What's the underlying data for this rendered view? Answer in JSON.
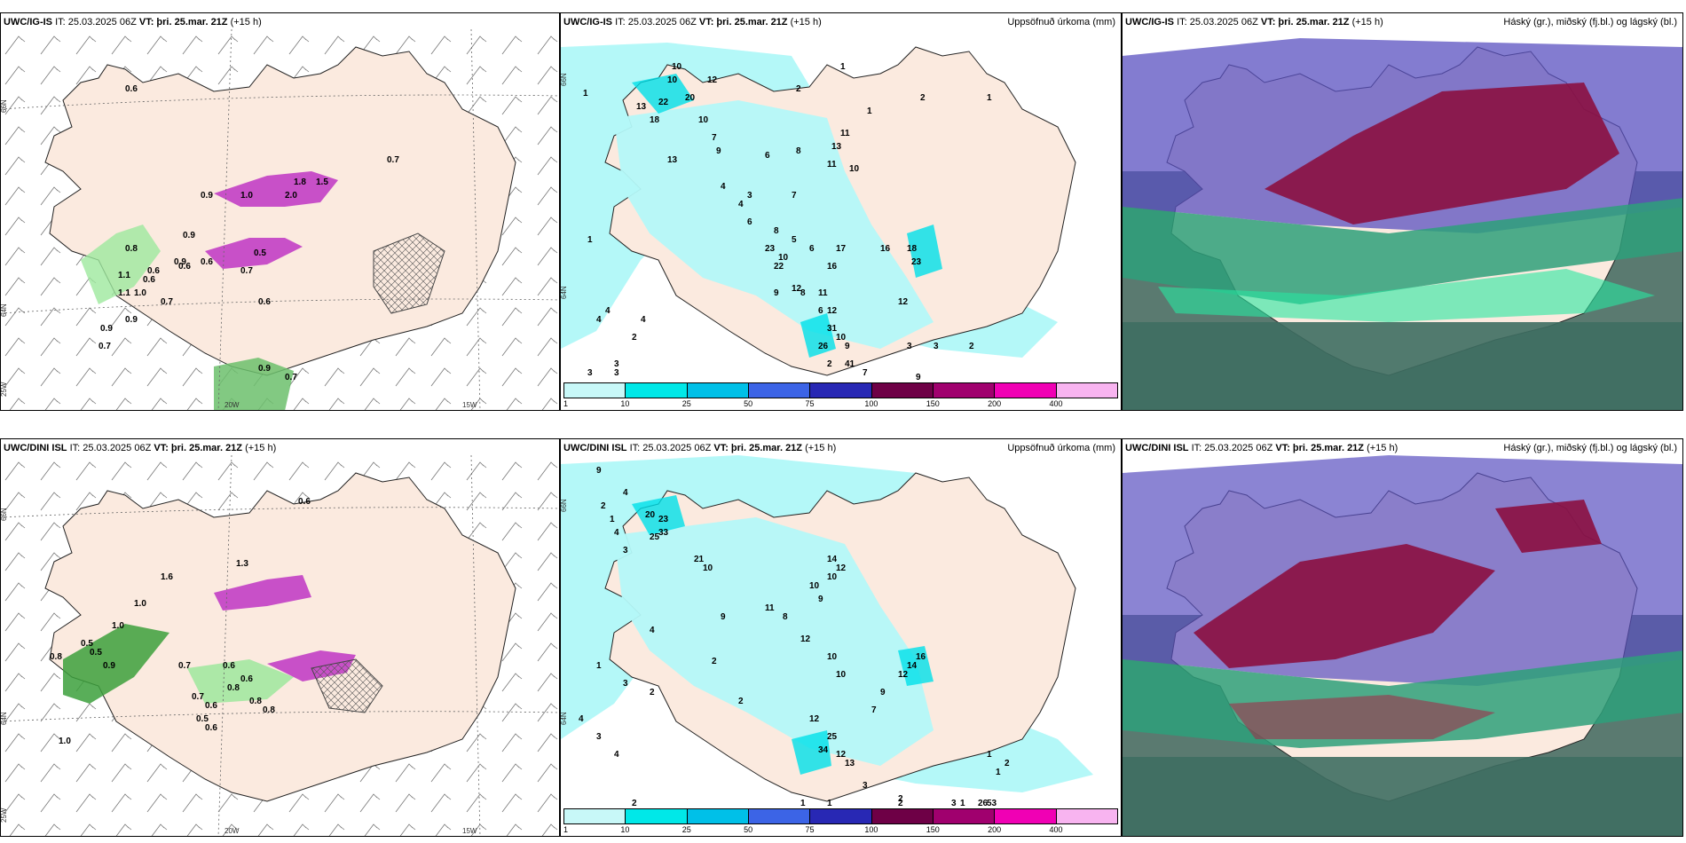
{
  "panels": [
    {
      "model": "UWC/IG-IS",
      "it": "IT: 25.03.2025 06Z",
      "vt_label": "VT:",
      "vt": "þri. 25.mar. 21Z",
      "lead": "(+15 h)",
      "right_title": "",
      "lon_labels": [
        "20W",
        "15W"
      ],
      "lat_labels": [
        "66N",
        "64N",
        "25W"
      ],
      "values": [
        "0.6",
        "0.9",
        "0.9",
        "0.9",
        "0.7",
        "0.8",
        "0.6",
        "1.1",
        "1.1",
        "1.0",
        "0.9",
        "0.9",
        "0.7",
        "0.6",
        "0.6",
        "0.5",
        "0.7",
        "0.6",
        "0.6",
        "0.7",
        "0.9",
        "0.7",
        "2.0",
        "1.8",
        "1.0",
        "1.5"
      ]
    },
    {
      "model": "UWC/IG-IS",
      "it": "IT: 25.03.2025 06Z",
      "vt_label": "VT:",
      "vt": "þri. 25.mar. 21Z",
      "lead": "(+15 h)",
      "right_title": "Uppsöfnuð úrkoma (mm)",
      "lat_labels": [
        "66N",
        "64N"
      ],
      "values": [
        "1",
        "2",
        "1",
        "2",
        "1",
        "1",
        "10",
        "12",
        "10",
        "13",
        "20",
        "22",
        "18",
        "10",
        "7",
        "9",
        "13",
        "4",
        "6",
        "8",
        "11",
        "11",
        "13",
        "10",
        "3",
        "7",
        "4",
        "6",
        "8",
        "5",
        "6",
        "23",
        "17",
        "16",
        "22",
        "16",
        "18",
        "23",
        "10",
        "11",
        "9",
        "8",
        "12",
        "12",
        "31",
        "10",
        "26",
        "41",
        "9",
        "7",
        "3",
        "3",
        "2",
        "2",
        "4",
        "4",
        "4",
        "3",
        "3",
        "1",
        "3",
        "9",
        "12",
        "6",
        "2"
      ]
    },
    {
      "model": "UWC/IG-IS",
      "it": "IT: 25.03.2025 06Z",
      "vt_label": "VT:",
      "vt": "þri. 25.mar. 21Z",
      "lead": "(+15 h)",
      "right_title": "Háský (gr.), miðský (fj.bl.) og lágský (bl.)"
    },
    {
      "model": "UWC/DINI ISL",
      "it": "IT: 25.03.2025 06Z",
      "vt_label": "VT:",
      "vt": "þri. 25.mar. 21Z",
      "lead": "(+15 h)",
      "right_title": "",
      "lon_labels": [
        "20W",
        "15W"
      ],
      "lat_labels": [
        "66N",
        "64N",
        "25W"
      ],
      "values": [
        "0.6",
        "1.0",
        "1.6",
        "0.8",
        "0.9",
        "1.3",
        "1.0",
        "0.5",
        "0.5",
        "0.7",
        "0.6",
        "0.8",
        "0.7",
        "0.6",
        "0.5",
        "0.6",
        "0.8",
        "1.0",
        "0.6",
        "0.8"
      ]
    },
    {
      "model": "UWC/DINI ISL",
      "it": "IT: 25.03.2025 06Z",
      "vt_label": "VT:",
      "vt": "þri. 25.mar. 21Z",
      "lead": "(+15 h)",
      "right_title": "Uppsöfnuð úrkoma (mm)",
      "lat_labels": [
        "66N",
        "64N"
      ],
      "values": [
        "9",
        "4",
        "2",
        "1",
        "4",
        "3",
        "20",
        "23",
        "33",
        "25",
        "21",
        "10",
        "9",
        "4",
        "1",
        "3",
        "2",
        "14",
        "12",
        "10",
        "10",
        "9",
        "11",
        "8",
        "12",
        "10",
        "2",
        "10",
        "16",
        "14",
        "12",
        "9",
        "7",
        "2",
        "12",
        "25",
        "34",
        "12",
        "13",
        "3",
        "2",
        "53",
        "26",
        "3",
        "1",
        "1",
        "1",
        "2",
        "2",
        "4",
        "3",
        "4",
        "1",
        "2",
        "1"
      ]
    },
    {
      "model": "UWC/DINI ISL",
      "it": "IT: 25.03.2025 06Z",
      "vt_label": "VT:",
      "vt": "þri. 25.mar. 21Z",
      "lead": "(+15 h)",
      "right_title": "Háský (gr.), miðský (fj.bl.) og lágský (bl.)"
    }
  ],
  "legend": {
    "ticks": [
      "1",
      "10",
      "25",
      "50",
      "75",
      "100",
      "150",
      "200",
      "400"
    ],
    "colors": [
      "#c8f8f8",
      "#00e8e8",
      "#00c0e8",
      "#3c64e6",
      "#2828b4",
      "#6e0046",
      "#a0006e",
      "#f000b4",
      "#f8b4f0"
    ]
  },
  "colors": {
    "land": "#fbeadf",
    "sea": "#ffffff",
    "precip_light": "#b4f8f8",
    "precip_mid": "#00e0e8",
    "wind_green": "#9ee89e",
    "wind_green_dark": "#3ca03c",
    "magenta": "#c850c8",
    "cloud_high": "#8b1040",
    "cloud_mid": "#5a50c0",
    "cloud_low": "#2ea07a",
    "cloud_bg": "#5a7a70"
  }
}
